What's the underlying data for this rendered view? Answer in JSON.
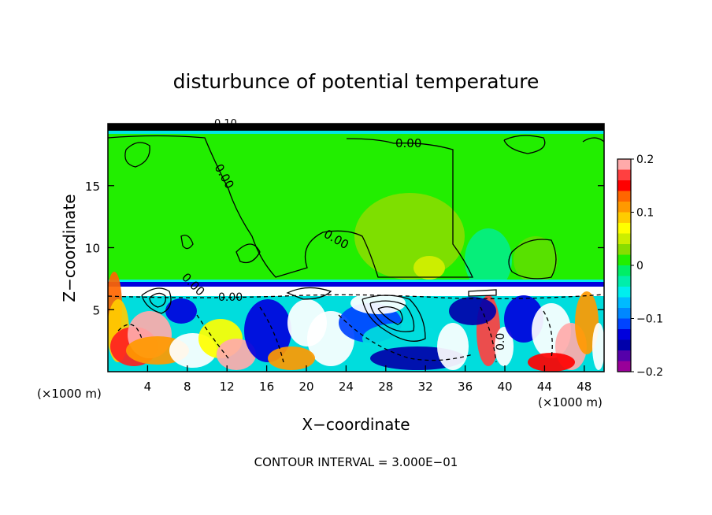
{
  "chart_data": {
    "type": "heatmap",
    "title": "disturbunce of potential temperature",
    "xlabel": "X−coordinate",
    "ylabel": "Z−coordinate",
    "x_unit_left": "(×1000 m)",
    "x_unit_right": "(×1000 m)",
    "xlim": [
      0,
      50
    ],
    "ylim": [
      0,
      20
    ],
    "x_ticks": [
      4,
      8,
      12,
      16,
      20,
      24,
      28,
      32,
      36,
      40,
      44,
      48
    ],
    "x_tick_labels": [
      "4",
      "8",
      "12",
      "16",
      "20",
      "24",
      "28",
      "32",
      "36",
      "40",
      "44",
      "48"
    ],
    "y_ticks": [
      5,
      10,
      15
    ],
    "y_tick_labels": [
      "5",
      "10",
      "15"
    ],
    "footer": "CONTOUR INTERVAL = 3.000E−01",
    "contour_labels": [
      "0.00",
      "0.00",
      "0.00",
      "0.00",
      "0.00",
      "0.10",
      "0.0"
    ],
    "colorbar": {
      "min": -0.2,
      "max": 0.2,
      "ticks": [
        0.2,
        0.1,
        0,
        -0.1,
        -0.2
      ],
      "tick_labels": [
        "0.2",
        "0.1",
        "0",
        "−0.1",
        "−0.2"
      ],
      "colors": [
        "#ffaaaa",
        "#ff4040",
        "#ff0000",
        "#ff6600",
        "#ff9900",
        "#ffcc00",
        "#ffff00",
        "#ccee00",
        "#88dd00",
        "#22ee00",
        "#00ee66",
        "#00eeaa",
        "#00eeee",
        "#00bbff",
        "#0088ff",
        "#0044ff",
        "#0000dd",
        "#0000aa",
        "#5500aa",
        "#990099"
      ]
    }
  }
}
